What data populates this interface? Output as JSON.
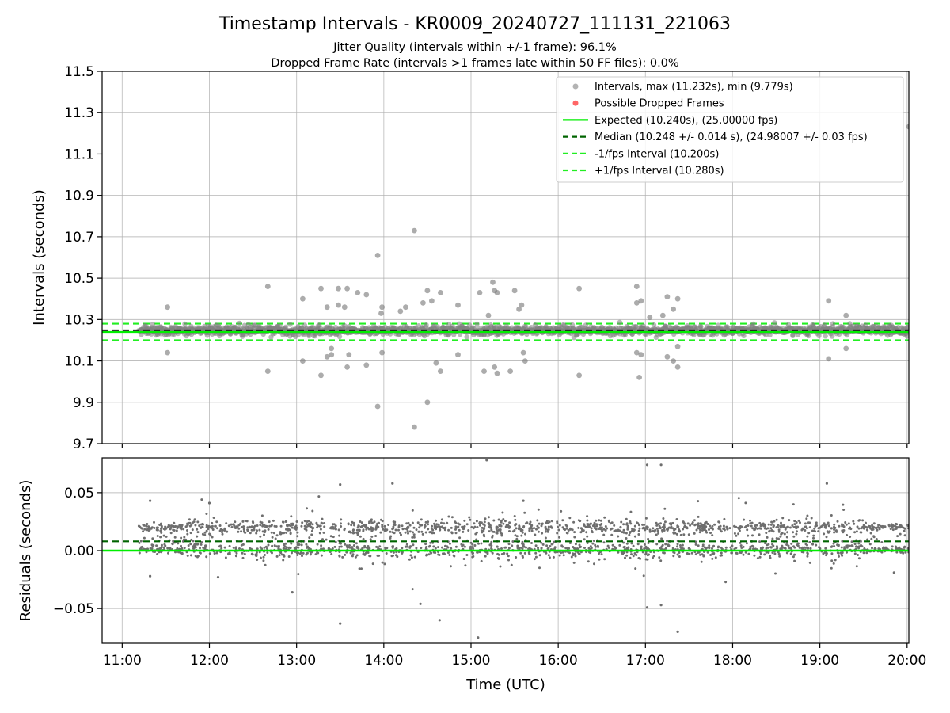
{
  "chart_data": {
    "type": "scatter",
    "title": "Timestamp Intervals - KR0009_20240727_111131_221063",
    "subtitle_1": "Jitter Quality (intervals within +/-1 frame): 96.1%",
    "subtitle_2": "Dropped Frame Rate (intervals >1 frames late within 50 FF files): 0.0%",
    "xlabel": "Time (UTC)",
    "x_tick_labels": [
      "11:00",
      "12:00",
      "13:00",
      "14:00",
      "15:00",
      "16:00",
      "17:00",
      "18:00",
      "19:00",
      "20:00"
    ],
    "x_range_hours": [
      10.77,
      20.02
    ],
    "data_start_hour": 11.19,
    "data_end_hour": 20.02,
    "grid": true,
    "top_panel": {
      "ylabel": "Intervals (seconds)",
      "ylim": [
        9.7,
        11.5
      ],
      "y_tick_labels": [
        "9.7",
        "9.9",
        "10.1",
        "10.3",
        "10.5",
        "10.7",
        "10.9",
        "11.1",
        "11.3",
        "11.5"
      ],
      "expected": 10.24,
      "median": 10.248,
      "lower_fps_interval": 10.2,
      "upper_fps_interval": 10.28,
      "max": 11.232,
      "min": 9.779,
      "outliers": [
        [
          11.52,
          10.36
        ],
        [
          11.52,
          10.14
        ],
        [
          12.67,
          10.46
        ],
        [
          12.67,
          10.05
        ],
        [
          13.07,
          10.4
        ],
        [
          13.07,
          10.1
        ],
        [
          13.28,
          10.45
        ],
        [
          13.28,
          10.03
        ],
        [
          13.35,
          10.36
        ],
        [
          13.35,
          10.12
        ],
        [
          13.4,
          10.16
        ],
        [
          13.4,
          10.13
        ],
        [
          13.48,
          10.45
        ],
        [
          13.48,
          10.37
        ],
        [
          13.55,
          10.36
        ],
        [
          13.58,
          10.45
        ],
        [
          13.58,
          10.07
        ],
        [
          13.6,
          10.13
        ],
        [
          13.7,
          10.43
        ],
        [
          13.8,
          10.42
        ],
        [
          13.8,
          10.08
        ],
        [
          13.93,
          10.61
        ],
        [
          13.93,
          9.88
        ],
        [
          13.97,
          10.33
        ],
        [
          13.98,
          10.36
        ],
        [
          13.98,
          10.14
        ],
        [
          14.19,
          10.34
        ],
        [
          14.25,
          10.36
        ],
        [
          14.35,
          10.73
        ],
        [
          14.35,
          9.78
        ],
        [
          14.45,
          10.38
        ],
        [
          14.5,
          10.44
        ],
        [
          14.5,
          9.9
        ],
        [
          14.55,
          10.39
        ],
        [
          14.6,
          10.09
        ],
        [
          14.65,
          10.43
        ],
        [
          14.65,
          10.05
        ],
        [
          14.85,
          10.37
        ],
        [
          14.85,
          10.13
        ],
        [
          15.1,
          10.43
        ],
        [
          15.15,
          10.05
        ],
        [
          15.2,
          10.32
        ],
        [
          15.25,
          10.48
        ],
        [
          15.27,
          10.44
        ],
        [
          15.27,
          10.07
        ],
        [
          15.3,
          10.43
        ],
        [
          15.3,
          10.04
        ],
        [
          15.45,
          10.05
        ],
        [
          15.5,
          10.44
        ],
        [
          15.55,
          10.35
        ],
        [
          15.58,
          10.37
        ],
        [
          15.6,
          10.14
        ],
        [
          15.62,
          10.1
        ],
        [
          16.24,
          10.45
        ],
        [
          16.24,
          10.03
        ],
        [
          16.9,
          10.46
        ],
        [
          16.9,
          10.38
        ],
        [
          16.9,
          10.14
        ],
        [
          16.93,
          10.02
        ],
        [
          16.95,
          10.39
        ],
        [
          16.95,
          10.13
        ],
        [
          17.05,
          10.31
        ],
        [
          17.2,
          10.32
        ],
        [
          17.25,
          10.41
        ],
        [
          17.25,
          10.12
        ],
        [
          17.32,
          10.35
        ],
        [
          17.32,
          10.1
        ],
        [
          17.37,
          10.4
        ],
        [
          17.37,
          10.17
        ],
        [
          17.37,
          10.07
        ],
        [
          19.1,
          10.39
        ],
        [
          19.1,
          10.11
        ],
        [
          19.3,
          10.32
        ],
        [
          19.3,
          10.16
        ],
        [
          20.02,
          11.232
        ]
      ]
    },
    "bottom_panel": {
      "ylabel": "Residuals (seconds)",
      "ylim": [
        -0.08,
        0.08
      ],
      "y_tick_labels": [
        "0.05",
        "0.00",
        "−0.05"
      ],
      "expected_residual": 0.0,
      "median_residual": 0.008,
      "outliers": [
        [
          11.32,
          0.043
        ],
        [
          11.32,
          -0.022
        ],
        [
          12.0,
          0.041
        ],
        [
          12.1,
          -0.023
        ],
        [
          12.95,
          -0.036
        ],
        [
          13.5,
          0.057
        ],
        [
          13.5,
          -0.063
        ],
        [
          14.1,
          0.058
        ],
        [
          14.42,
          -0.046
        ],
        [
          14.64,
          -0.06
        ],
        [
          15.08,
          -0.075
        ],
        [
          15.18,
          0.078
        ],
        [
          15.6,
          0.043
        ],
        [
          17.02,
          -0.049
        ],
        [
          17.02,
          0.074
        ],
        [
          17.18,
          -0.047
        ],
        [
          17.18,
          0.074
        ],
        [
          17.37,
          -0.07
        ],
        [
          19.08,
          0.058
        ],
        [
          19.85,
          -0.019
        ]
      ]
    },
    "legend": {
      "position": "upper right",
      "entries": [
        {
          "label": "Intervals, max (11.232s), min (9.779s)",
          "style": "grey-dot"
        },
        {
          "label": "Possible Dropped Frames",
          "style": "red-dot"
        },
        {
          "label": "Expected (10.240s), (25.00000 fps)",
          "style": "green-solid"
        },
        {
          "label": "Median (10.248 +/- 0.014 s), (24.98007 +/- 0.03 fps)",
          "style": "darkgreen-dashed"
        },
        {
          "label": "-1/fps Interval (10.200s)",
          "style": "green-dashed"
        },
        {
          "label": "+1/fps Interval (10.280s)",
          "style": "green-dashed"
        }
      ]
    },
    "colors": {
      "points": "#808080",
      "dropped": "#ff0000",
      "expected": "#00ee00",
      "median": "#006400",
      "fps_bounds": "#22ee22",
      "grid": "#b0b0b0"
    }
  }
}
